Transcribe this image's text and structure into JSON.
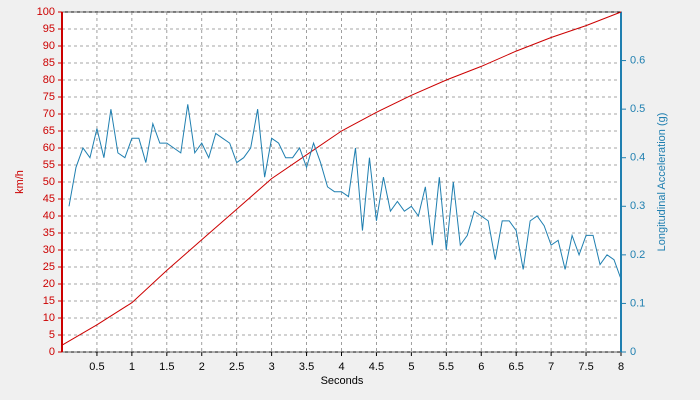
{
  "chart_data": {
    "type": "line",
    "xlabel": "Seconds",
    "ylabel": "km/h",
    "y2label": "Longitudinal Acceleration (g)",
    "xlim": [
      0,
      8
    ],
    "xticks": [
      0.5,
      1,
      1.5,
      2,
      2.5,
      3,
      3.5,
      4,
      4.5,
      5,
      5.5,
      6,
      6.5,
      7,
      7.5,
      8
    ],
    "ylim": [
      0,
      100
    ],
    "yticks": [
      0,
      5,
      10,
      15,
      20,
      25,
      30,
      35,
      40,
      45,
      50,
      55,
      60,
      65,
      70,
      75,
      80,
      85,
      90,
      95,
      100
    ],
    "y2lim": [
      0,
      0.7
    ],
    "y2ticks": [
      0,
      0.1,
      0.2,
      0.3,
      0.4,
      0.5,
      0.6
    ],
    "grid": true,
    "series": [
      {
        "color": "#cc0000",
        "axis": "y",
        "x": [
          0,
          0.5,
          1,
          1.5,
          2,
          2.5,
          3,
          3.5,
          4,
          4.5,
          5,
          5.5,
          6,
          6.5,
          7,
          7.5,
          8
        ],
        "values": [
          2,
          8,
          14.5,
          24,
          33,
          42,
          51,
          58,
          65,
          70.5,
          75.5,
          80,
          84,
          88.5,
          92.5,
          96,
          100
        ]
      },
      {
        "color": "#1f7fb0",
        "axis": "y2",
        "x": [
          0.1,
          0.2,
          0.3,
          0.4,
          0.5,
          0.6,
          0.7,
          0.8,
          0.9,
          1.0,
          1.1,
          1.2,
          1.3,
          1.4,
          1.5,
          1.6,
          1.7,
          1.8,
          1.9,
          2.0,
          2.1,
          2.2,
          2.3,
          2.4,
          2.5,
          2.6,
          2.7,
          2.8,
          2.9,
          3.0,
          3.1,
          3.2,
          3.3,
          3.4,
          3.5,
          3.6,
          3.7,
          3.8,
          3.9,
          4.0,
          4.1,
          4.2,
          4.3,
          4.4,
          4.5,
          4.6,
          4.7,
          4.8,
          4.9,
          5.0,
          5.1,
          5.2,
          5.3,
          5.4,
          5.5,
          5.6,
          5.7,
          5.8,
          5.9,
          6.0,
          6.1,
          6.2,
          6.3,
          6.4,
          6.5,
          6.6,
          6.7,
          6.8,
          6.9,
          7.0,
          7.1,
          7.2,
          7.3,
          7.4,
          7.5,
          7.6,
          7.7,
          7.8,
          7.9,
          8.0
        ],
        "values": [
          0.3,
          0.38,
          0.42,
          0.4,
          0.46,
          0.4,
          0.5,
          0.41,
          0.4,
          0.44,
          0.44,
          0.39,
          0.47,
          0.43,
          0.43,
          0.42,
          0.41,
          0.51,
          0.41,
          0.43,
          0.4,
          0.45,
          0.44,
          0.43,
          0.39,
          0.4,
          0.42,
          0.5,
          0.36,
          0.44,
          0.43,
          0.4,
          0.4,
          0.42,
          0.38,
          0.43,
          0.39,
          0.34,
          0.33,
          0.33,
          0.32,
          0.42,
          0.25,
          0.4,
          0.27,
          0.36,
          0.29,
          0.31,
          0.29,
          0.3,
          0.28,
          0.34,
          0.22,
          0.36,
          0.21,
          0.35,
          0.22,
          0.24,
          0.29,
          0.28,
          0.27,
          0.19,
          0.27,
          0.27,
          0.25,
          0.17,
          0.27,
          0.28,
          0.26,
          0.22,
          0.23,
          0.17,
          0.24,
          0.2,
          0.24,
          0.24,
          0.18,
          0.2,
          0.19,
          0.15
        ]
      }
    ]
  }
}
